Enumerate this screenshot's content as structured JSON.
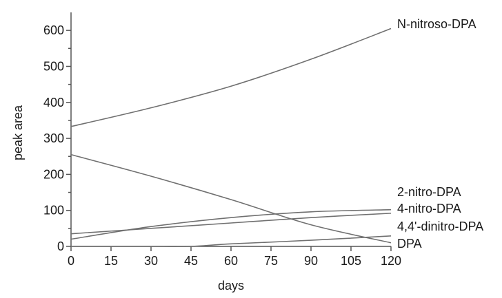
{
  "chart_data": {
    "type": "line",
    "xlabel": "days",
    "ylabel": "peak area",
    "xlim": [
      0,
      120
    ],
    "ylim": [
      0,
      650
    ],
    "xticks": [
      0,
      15,
      30,
      45,
      60,
      75,
      90,
      105,
      120
    ],
    "yticks": [
      0,
      100,
      200,
      300,
      400,
      500,
      600
    ],
    "grid": false,
    "series": [
      {
        "name": "N-nitroso-DPA",
        "x": [
          0,
          30,
          60,
          90,
          120
        ],
        "y": [
          333,
          385,
          445,
          520,
          605
        ]
      },
      {
        "name": "DPA",
        "x": [
          0,
          30,
          60,
          90,
          120
        ],
        "y": [
          255,
          195,
          130,
          60,
          10
        ]
      },
      {
        "name": "2-nitro-DPA",
        "x": [
          0,
          30,
          60,
          90,
          120
        ],
        "y": [
          35,
          50,
          65,
          80,
          92
        ]
      },
      {
        "name": "4-nitro-DPA",
        "x": [
          0,
          30,
          60,
          90,
          120
        ],
        "y": [
          20,
          55,
          80,
          96,
          102
        ]
      },
      {
        "name": "4,4'-dinitro-DPA",
        "x": [
          0,
          30,
          45,
          60,
          90,
          120
        ],
        "y": [
          0,
          0,
          0,
          7,
          17,
          29
        ]
      }
    ]
  }
}
